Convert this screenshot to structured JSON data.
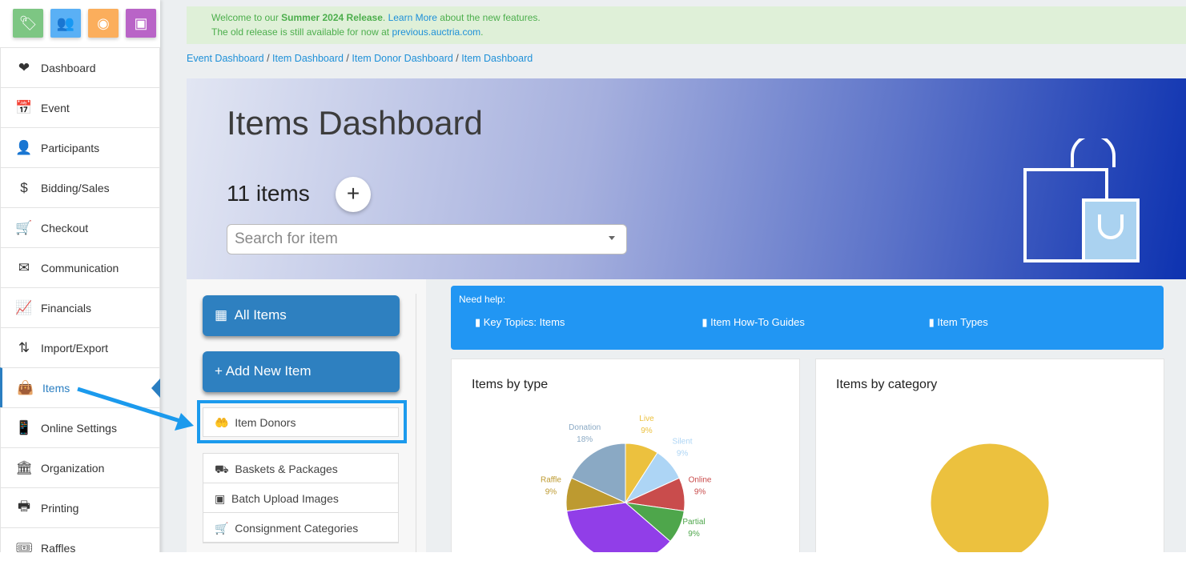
{
  "sidebar": {
    "top_icons": [
      {
        "icon": "tag-icon",
        "color": "#7dc683"
      },
      {
        "icon": "people-icon",
        "color": "#5ab0f5"
      },
      {
        "icon": "globe-icon",
        "color": "#fbae5c"
      },
      {
        "icon": "reader-icon",
        "color": "#b964c7"
      }
    ],
    "items": [
      {
        "label": "Dashboard",
        "icon": "heart-hand-icon"
      },
      {
        "label": "Event",
        "icon": "calendar-star-icon"
      },
      {
        "label": "Participants",
        "icon": "person-icon"
      },
      {
        "label": "Bidding/Sales",
        "icon": "dollar-icon"
      },
      {
        "label": "Checkout",
        "icon": "cart-icon"
      },
      {
        "label": "Communication",
        "icon": "envelope-open-icon"
      },
      {
        "label": "Financials",
        "icon": "chart-icon"
      },
      {
        "label": "Import/Export",
        "icon": "arrows-updown-icon"
      },
      {
        "label": "Items",
        "icon": "bag-icon",
        "active": true
      },
      {
        "label": "Online Settings",
        "icon": "mobile-gear-icon"
      },
      {
        "label": "Organization",
        "icon": "building-icon"
      },
      {
        "label": "Printing",
        "icon": "printer-icon"
      },
      {
        "label": "Raffles",
        "icon": "ticket-icon"
      }
    ]
  },
  "banner": {
    "pre": "Welcome to our ",
    "bold": "Summer 2024 Release",
    "mid": ". ",
    "link": "Learn More",
    "post": " about the new features.",
    "line2": "The old release is still available for now at ",
    "link2": "previous.auctria.com",
    "end": "."
  },
  "breadcrumb": [
    "Event Dashboard",
    "Item Dashboard",
    "Item Donor Dashboard",
    "Item Dashboard"
  ],
  "hero": {
    "title": "Items Dashboard",
    "count": "11 items",
    "add": "+",
    "search_placeholder": "Search for item"
  },
  "left_panel": {
    "all_items": "All Items",
    "add_new": "+  Add New Item",
    "item_donors": "Item Donors",
    "list": [
      "Baskets & Packages",
      "Batch Upload Images",
      "Consignment Categories"
    ]
  },
  "help": {
    "title": "Need help:",
    "links": [
      "Key Topics: Items",
      "Item How-To Guides",
      "Item Types"
    ]
  },
  "cards": {
    "by_type": "Items by type",
    "by_category": "Items by category"
  },
  "chart_data": [
    {
      "type": "pie",
      "title": "Items by type",
      "categories": [
        "Live",
        "Silent",
        "Online",
        "Partial",
        "",
        "Raffle",
        "Donation"
      ],
      "values": [
        9,
        9,
        9,
        9,
        36,
        9,
        18
      ],
      "labels": [
        "9%",
        "9%",
        "9%",
        "9%",
        "",
        "9%",
        "18%"
      ],
      "colors": [
        "#ecc13e",
        "#add5f5",
        "#c94c4c",
        "#4ea64b",
        "#913ee8",
        "#bd9a30",
        "#8aa9c4"
      ]
    },
    {
      "type": "pie",
      "title": "Items by category",
      "values": [
        100
      ],
      "colors": [
        "#ecc13e"
      ]
    }
  ]
}
